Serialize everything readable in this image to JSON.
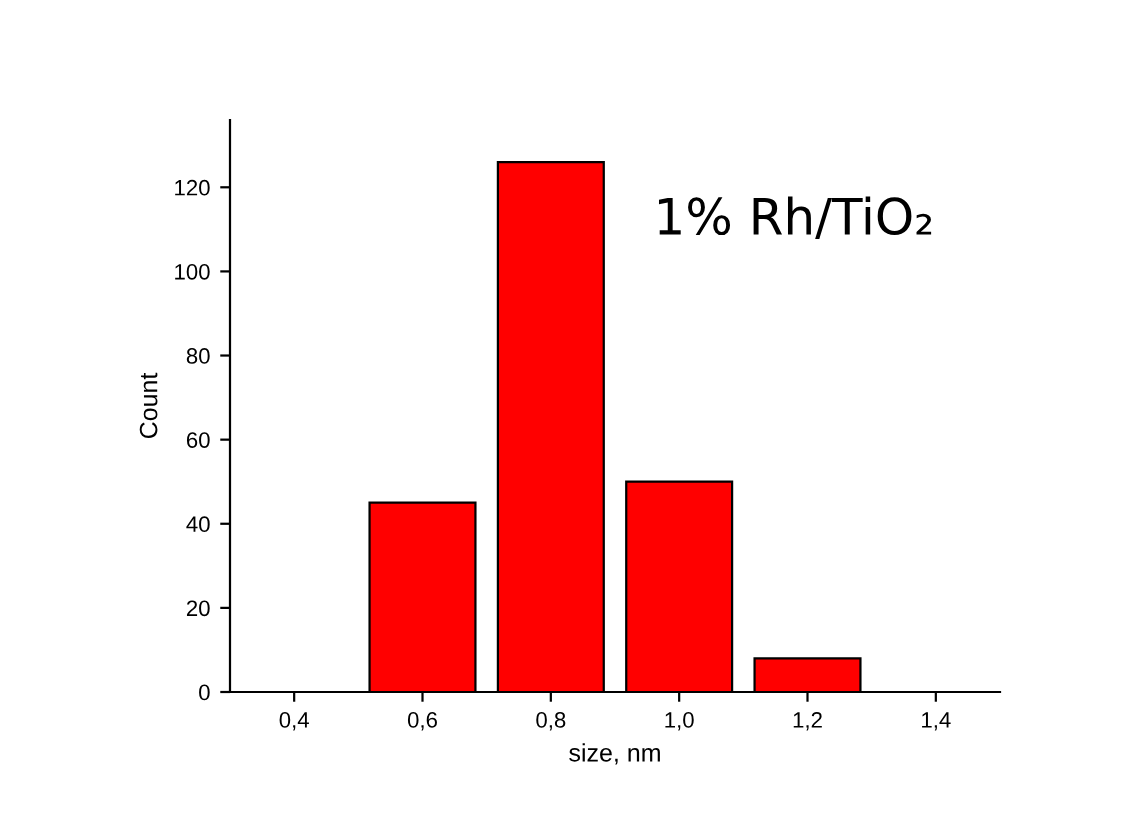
{
  "chart_data": {
    "type": "bar",
    "x": [
      0.6,
      0.8,
      1.0,
      1.2
    ],
    "values": [
      45,
      126,
      50,
      8
    ],
    "color": "#ff0000",
    "xlabel": "size, nm",
    "ylabel": "Count",
    "annotations": [
      "1% Rh/TiO₂"
    ],
    "xlim": [
      0.3,
      1.5
    ],
    "xticks": [
      {
        "value": 0.4,
        "label": "0,4"
      },
      {
        "value": 0.6,
        "label": "0,6"
      },
      {
        "value": 0.8,
        "label": "0,8"
      },
      {
        "value": 1.0,
        "label": "1,0"
      },
      {
        "value": 1.2,
        "label": "1,2"
      },
      {
        "value": 1.4,
        "label": "1,4"
      }
    ],
    "ylim": [
      0,
      136
    ],
    "yticks": [
      0,
      20,
      40,
      60,
      80,
      100,
      120
    ],
    "grid": false
  }
}
